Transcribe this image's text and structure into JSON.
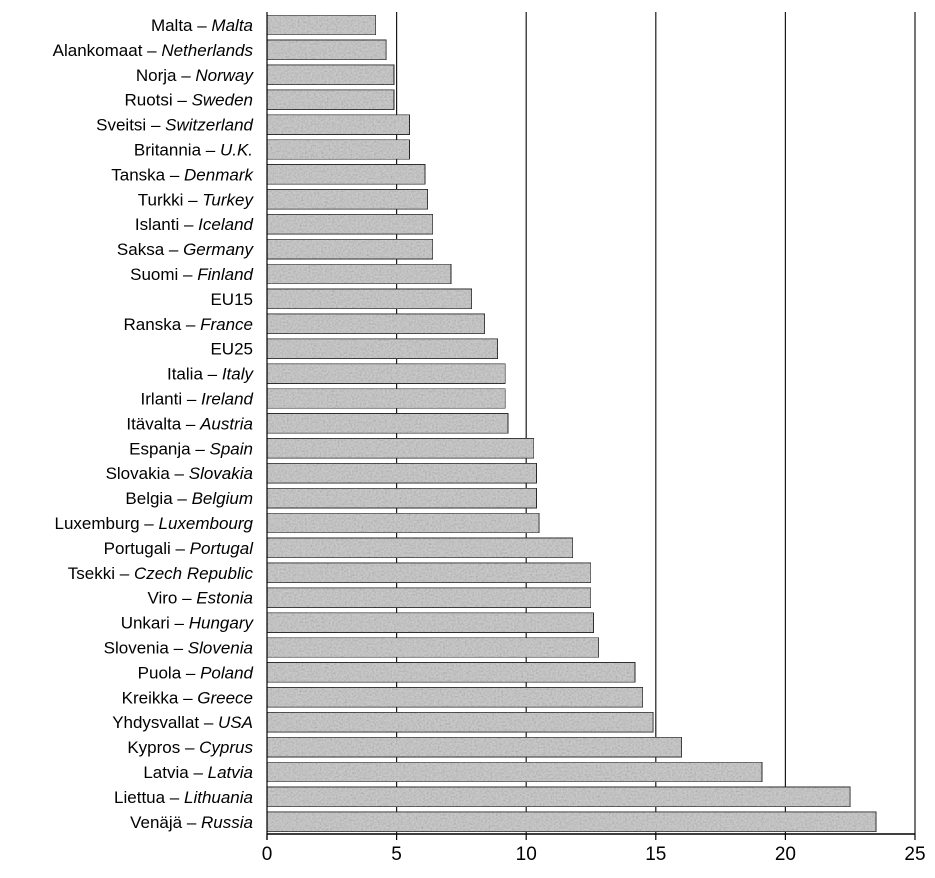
{
  "chart_data": {
    "type": "bar",
    "orientation": "horizontal",
    "categories": [
      {
        "fi": "Malta",
        "en": "Malta"
      },
      {
        "fi": "Alankomaat",
        "en": "Netherlands"
      },
      {
        "fi": "Norja",
        "en": "Norway"
      },
      {
        "fi": "Ruotsi",
        "en": "Sweden"
      },
      {
        "fi": "Sveitsi",
        "en": "Switzerland"
      },
      {
        "fi": "Britannia",
        "en": "U.K."
      },
      {
        "fi": "Tanska",
        "en": "Denmark"
      },
      {
        "fi": "Turkki",
        "en": "Turkey"
      },
      {
        "fi": "Islanti",
        "en": "Iceland"
      },
      {
        "fi": "Saksa",
        "en": "Germany"
      },
      {
        "fi": "Suomi",
        "en": "Finland"
      },
      {
        "fi": "EU15",
        "en": ""
      },
      {
        "fi": "Ranska",
        "en": "France"
      },
      {
        "fi": "EU25",
        "en": ""
      },
      {
        "fi": "Italia",
        "en": "Italy"
      },
      {
        "fi": "Irlanti",
        "en": "Ireland"
      },
      {
        "fi": "Itävalta",
        "en": "Austria"
      },
      {
        "fi": "Espanja",
        "en": "Spain"
      },
      {
        "fi": "Slovakia",
        "en": "Slovakia"
      },
      {
        "fi": "Belgia",
        "en": "Belgium"
      },
      {
        "fi": "Luxemburg",
        "en": "Luxembourg"
      },
      {
        "fi": "Portugali",
        "en": "Portugal"
      },
      {
        "fi": "Tsekki",
        "en": "Czech Republic"
      },
      {
        "fi": "Viro",
        "en": "Estonia"
      },
      {
        "fi": "Unkari",
        "en": "Hungary"
      },
      {
        "fi": "Slovenia",
        "en": "Slovenia"
      },
      {
        "fi": "Puola",
        "en": "Poland"
      },
      {
        "fi": "Kreikka",
        "en": "Greece"
      },
      {
        "fi": "Yhdysvallat",
        "en": "USA"
      },
      {
        "fi": "Kypros",
        "en": "Cyprus"
      },
      {
        "fi": "Latvia",
        "en": "Latvia"
      },
      {
        "fi": "Liettua",
        "en": "Lithuania"
      },
      {
        "fi": "Venäjä",
        "en": "Russia"
      }
    ],
    "values": [
      4.2,
      4.6,
      4.9,
      4.9,
      5.5,
      5.5,
      6.1,
      6.2,
      6.4,
      6.4,
      7.1,
      7.9,
      8.4,
      8.9,
      9.2,
      9.2,
      9.3,
      10.3,
      10.4,
      10.4,
      10.5,
      11.8,
      12.5,
      12.5,
      12.6,
      12.8,
      14.2,
      14.5,
      14.9,
      16.0,
      19.1,
      22.5,
      23.5
    ],
    "separator": " – ",
    "xlim": [
      0,
      25
    ],
    "xticks": [
      0,
      5,
      10,
      15,
      20,
      25
    ],
    "xtick_labels": [
      "0",
      "5",
      "10",
      "15",
      "20",
      "25"
    ],
    "vertical_gridlines": [
      5,
      10,
      15,
      20,
      25
    ],
    "title": "",
    "xlabel": "",
    "ylabel": "",
    "legend": "none",
    "colors": {
      "bar_fill": "#c9c9c9",
      "bar_texture_dark": "#8e8e8e",
      "bar_border": "#2a2a2a",
      "gridline": "#1a1a1a",
      "axis": "#000000",
      "text": "#000000"
    }
  }
}
